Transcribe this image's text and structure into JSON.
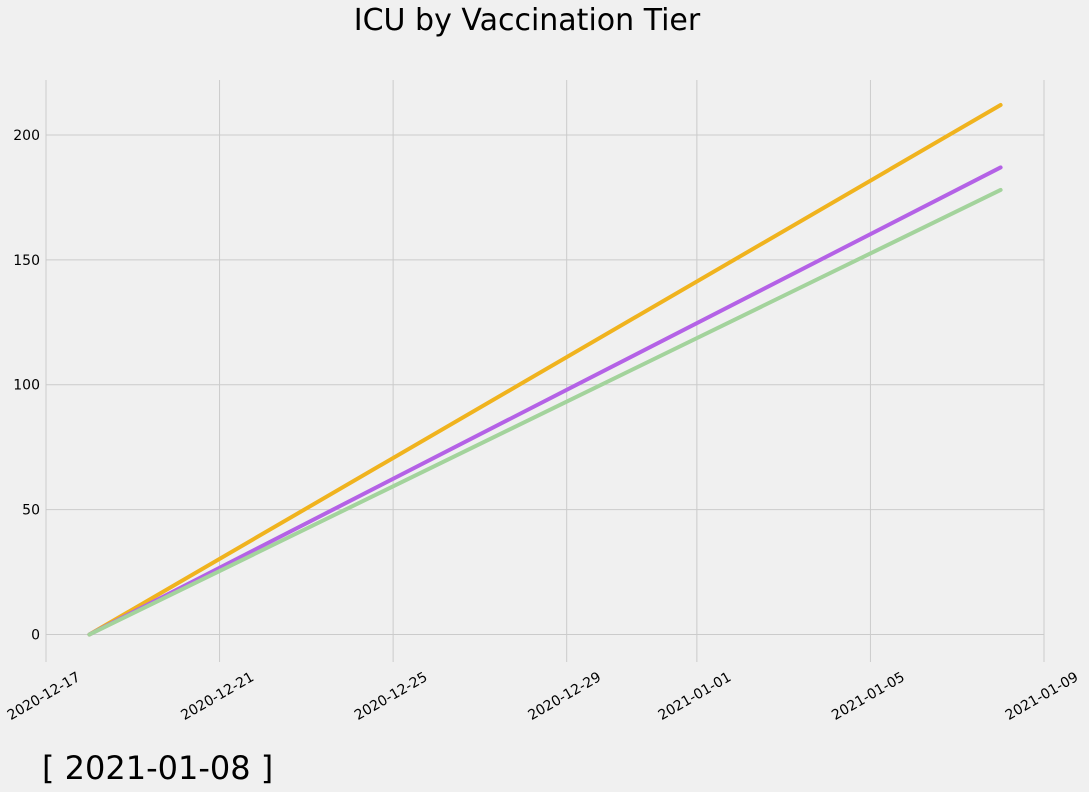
{
  "chart_data": {
    "type": "line",
    "title": "ICU by Vaccination Tier",
    "xlabel": "",
    "ylabel": "",
    "x_axis_type": "date",
    "x": [
      "2020-12-18",
      "2021-01-08"
    ],
    "xlim": [
      "2020-12-17",
      "2021-01-09"
    ],
    "xticks": [
      "2020-12-17",
      "2020-12-21",
      "2020-12-25",
      "2020-12-29",
      "2021-01-01",
      "2021-01-05",
      "2021-01-09"
    ],
    "xtick_rotation": 30,
    "ylim": [
      -11,
      222
    ],
    "yticks": [
      0,
      50,
      100,
      150,
      200
    ],
    "grid": true,
    "legend": "none",
    "series": [
      {
        "color": "#f0b31e",
        "values": [
          0,
          212
        ]
      },
      {
        "color": "#b462e6",
        "values": [
          0,
          187
        ]
      },
      {
        "color": "#a3d39c",
        "values": [
          0,
          178
        ]
      }
    ],
    "annotation": "[ 2021-01-08 ]"
  }
}
